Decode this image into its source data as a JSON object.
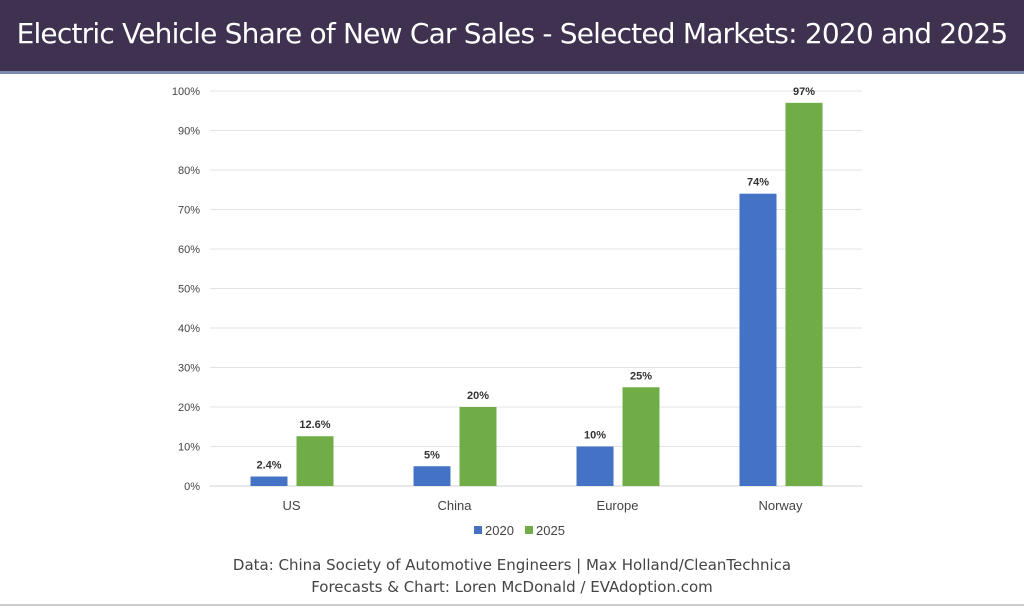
{
  "title": "Electric Vehicle Share of New Car Sales - Selected Markets: 2020 and 2025",
  "footer": {
    "line1": "Data: China Society of Automotive Engineers | Max Holland/CleanTechnica",
    "line2": "Forecasts & Chart: Loren McDonald / EVAdoption.com"
  },
  "chart_data": {
    "type": "bar",
    "categories": [
      "US",
      "China",
      "Europe",
      "Norway"
    ],
    "series": [
      {
        "name": "2020",
        "values": [
          2.4,
          5,
          10,
          74
        ],
        "labels": [
          "2.4%",
          "5%",
          "10%",
          "74%"
        ],
        "color": "#4472c4"
      },
      {
        "name": "2025",
        "values": [
          12.6,
          20,
          25,
          97
        ],
        "labels": [
          "12.6%",
          "20%",
          "25%",
          "97%"
        ],
        "color": "#70ad47"
      }
    ],
    "ylim": [
      0,
      100
    ],
    "yticks": [
      "0%",
      "10%",
      "20%",
      "30%",
      "40%",
      "50%",
      "60%",
      "70%",
      "80%",
      "90%",
      "100%"
    ],
    "grid": true,
    "legend": "bottom"
  }
}
